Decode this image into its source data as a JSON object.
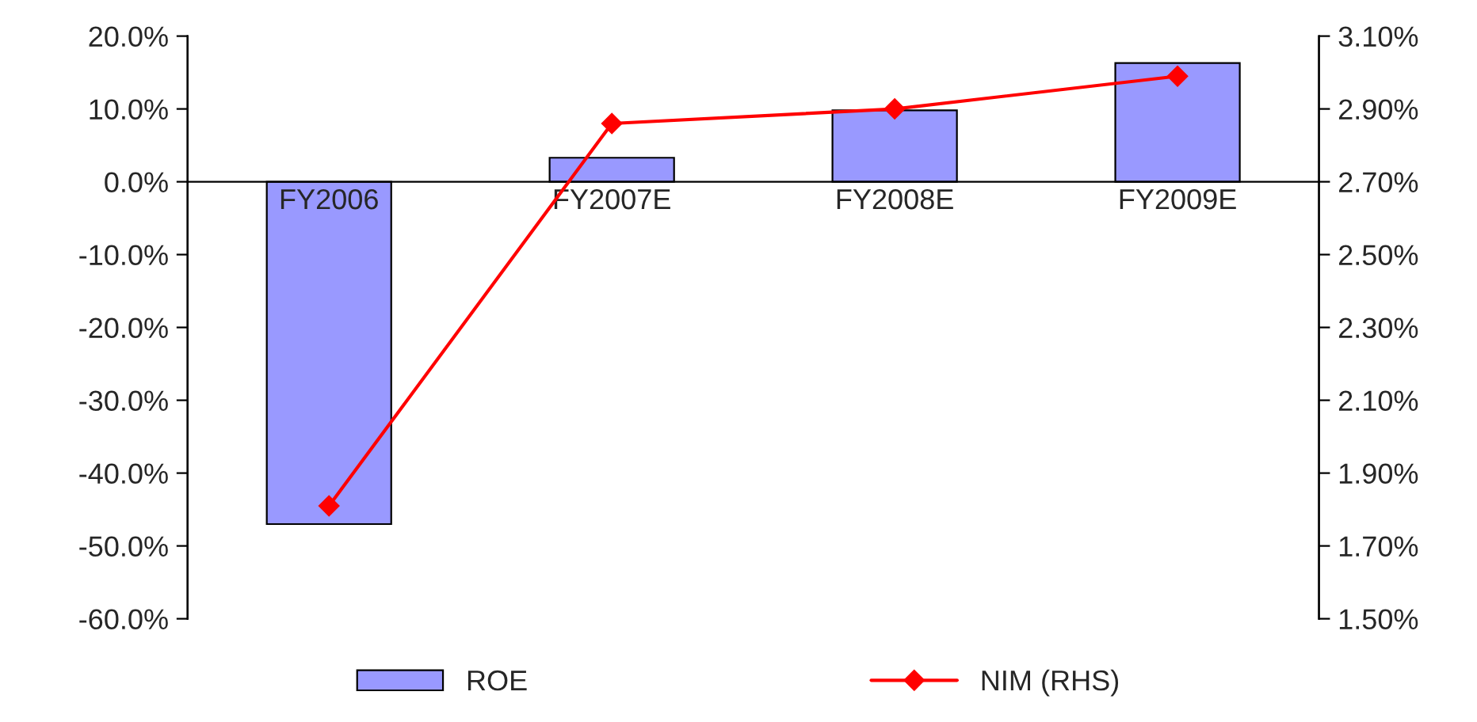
{
  "chart_data": {
    "type": "bar",
    "categories": [
      "FY2006",
      "FY2007E",
      "FY2008E",
      "FY2009E"
    ],
    "series": [
      {
        "name": "ROE",
        "color": "#9999ff",
        "values": [
          -47.0,
          3.3,
          9.8,
          16.3
        ]
      },
      {
        "name": "NIM (RHS)",
        "type": "line",
        "axis": "y2",
        "color": "#ff0000",
        "marker": "diamond",
        "values": [
          1.81,
          2.86,
          2.9,
          2.99
        ]
      }
    ],
    "ylim": [
      -60,
      20
    ],
    "yticks": [
      {
        "value": -60,
        "label": "-60.0%"
      },
      {
        "value": -50,
        "label": "-50.0%"
      },
      {
        "value": -40,
        "label": "-40.0%"
      },
      {
        "value": -30,
        "label": "-30.0%"
      },
      {
        "value": -20,
        "label": "-20.0%"
      },
      {
        "value": -10,
        "label": "-10.0%"
      },
      {
        "value": 0,
        "label": "0.0%"
      },
      {
        "value": 10,
        "label": "10.0%"
      },
      {
        "value": 20,
        "label": "20.0%"
      }
    ],
    "y2lim": [
      1.5,
      3.1
    ],
    "y2ticks": [
      {
        "value": 1.5,
        "label": "1.50%"
      },
      {
        "value": 1.7,
        "label": "1.70%"
      },
      {
        "value": 1.9,
        "label": "1.90%"
      },
      {
        "value": 2.1,
        "label": "2.10%"
      },
      {
        "value": 2.3,
        "label": "2.30%"
      },
      {
        "value": 2.5,
        "label": "2.50%"
      },
      {
        "value": 2.7,
        "label": "2.70%"
      },
      {
        "value": 2.9,
        "label": "2.90%"
      },
      {
        "value": 3.1,
        "label": "3.10%"
      }
    ],
    "grid": false,
    "legend": "bottom"
  }
}
